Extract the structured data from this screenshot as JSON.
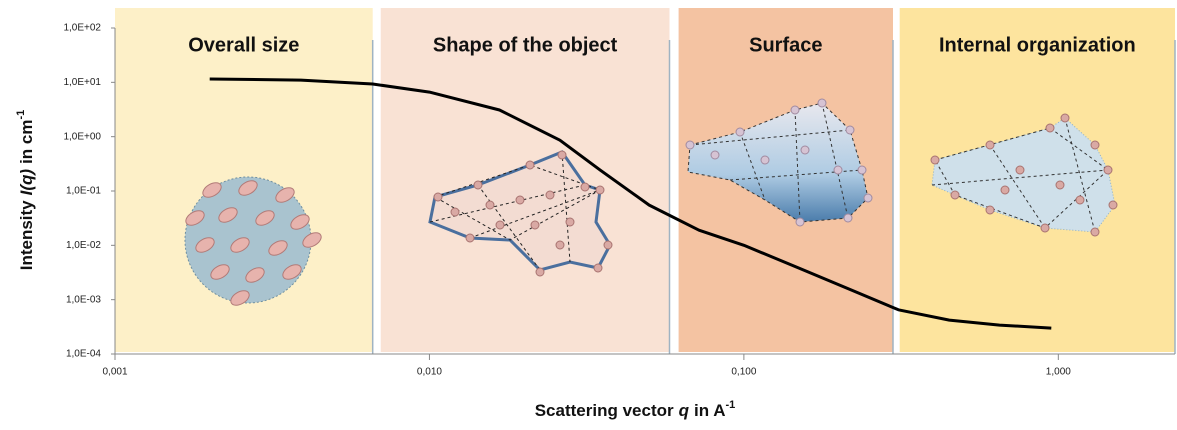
{
  "chart_data": {
    "type": "line",
    "xscale": "log",
    "yscale": "log",
    "xlabel": [
      "Scattering vector",
      "q",
      "in A",
      "-1"
    ],
    "ylabel": [
      "Intensity",
      "I(q)",
      "in cm",
      "-1"
    ],
    "xlim": [
      0.001,
      2.35
    ],
    "ylim": [
      0.0001,
      100
    ],
    "xticks": [
      {
        "value": 0.001,
        "label": "0,001"
      },
      {
        "value": 0.01,
        "label": "0,010"
      },
      {
        "value": 0.1,
        "label": "0,100"
      },
      {
        "value": 1,
        "label": "1,000"
      }
    ],
    "yticks": [
      {
        "value": 100,
        "label": "1,0E+02"
      },
      {
        "value": 10,
        "label": "1,0E+01"
      },
      {
        "value": 1,
        "label": "1,0E+00"
      },
      {
        "value": 0.1,
        "label": "1,0E-01"
      },
      {
        "value": 0.01,
        "label": "1,0E-02"
      },
      {
        "value": 0.001,
        "label": "1,0E-03"
      },
      {
        "value": 0.0001,
        "label": "1,0E-04"
      }
    ],
    "regions": [
      {
        "label": "Overall size",
        "from": 0.001,
        "to": 0.0066,
        "color": "#fdf0c8"
      },
      {
        "label": "Shape of the object",
        "from": 0.007,
        "to": 0.058,
        "color": "#f9e2d4"
      },
      {
        "label": "Surface",
        "from": 0.062,
        "to": 0.298,
        "color": "#f4c3a2"
      },
      {
        "label": "Internal organization",
        "from": 0.313,
        "to": 2.35,
        "color": "#fde49e"
      }
    ],
    "x": [
      0.002,
      0.0039,
      0.0066,
      0.01,
      0.0167,
      0.026,
      0.035,
      0.05,
      0.072,
      0.1,
      0.15,
      0.22,
      0.31,
      0.45,
      0.65,
      0.95
    ],
    "series": [
      {
        "color": "#000000",
        "values": [
          11.5,
          11,
          9.3,
          6.6,
          3.1,
          0.86,
          0.24,
          0.055,
          0.019,
          0.01,
          0.0038,
          0.0015,
          0.00065,
          0.00042,
          0.00034,
          0.0003
        ]
      }
    ]
  }
}
